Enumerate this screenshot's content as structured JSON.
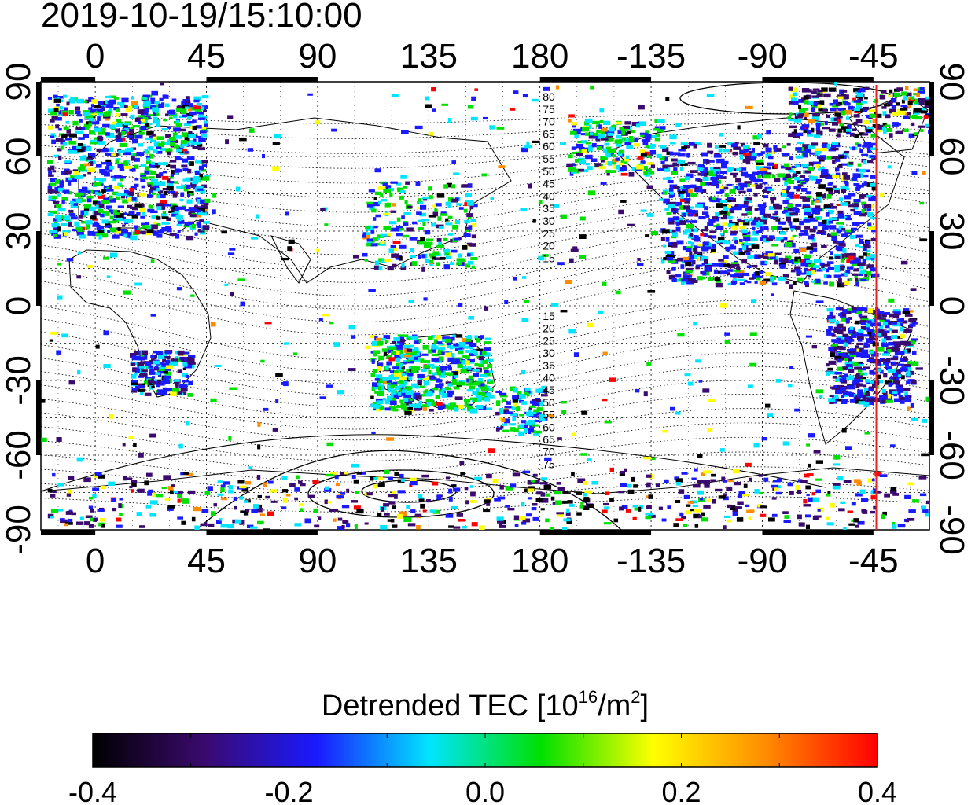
{
  "title": "2019-10-19/15:10:00",
  "map": {
    "lon_ticks_top": [
      "0",
      "45",
      "90",
      "135",
      "180",
      "-135",
      "-90",
      "-45"
    ],
    "lon_ticks_bottom": [
      "0",
      "45",
      "90",
      "135",
      "180",
      "-135",
      "-90",
      "-45"
    ],
    "lat_ticks_left": [
      "90",
      "60",
      "30",
      "0",
      "-30",
      "-60",
      "-90"
    ],
    "lat_ticks_right": [
      "90",
      "60",
      "30",
      "0",
      "-30",
      "-60",
      "-90"
    ],
    "magnetic_lat_labels_north": [
      "80",
      "75",
      "70",
      "65",
      "60",
      "55",
      "50",
      "45",
      "40",
      "35",
      "30",
      "25",
      "20",
      "15"
    ],
    "magnetic_lat_labels_south": [
      "15",
      "20",
      "25",
      "30",
      "35",
      "40",
      "45",
      "50",
      "55",
      "60",
      "65",
      "70",
      "75"
    ],
    "marker_line_color": "#e8231f"
  },
  "colorbar": {
    "label_main": "Detrended TEC  [10",
    "label_sup1": "16",
    "label_mid": "/m",
    "label_sup2": "2",
    "label_end": "]",
    "ticks": [
      "-0.4",
      "-0.2",
      "0.0",
      "0.2",
      "0.4"
    ],
    "stops": [
      "#000000",
      "#3a0a6e",
      "#1a1aff",
      "#00e5ff",
      "#00e000",
      "#ffff00",
      "#ff8c00",
      "#ff0000"
    ]
  }
}
